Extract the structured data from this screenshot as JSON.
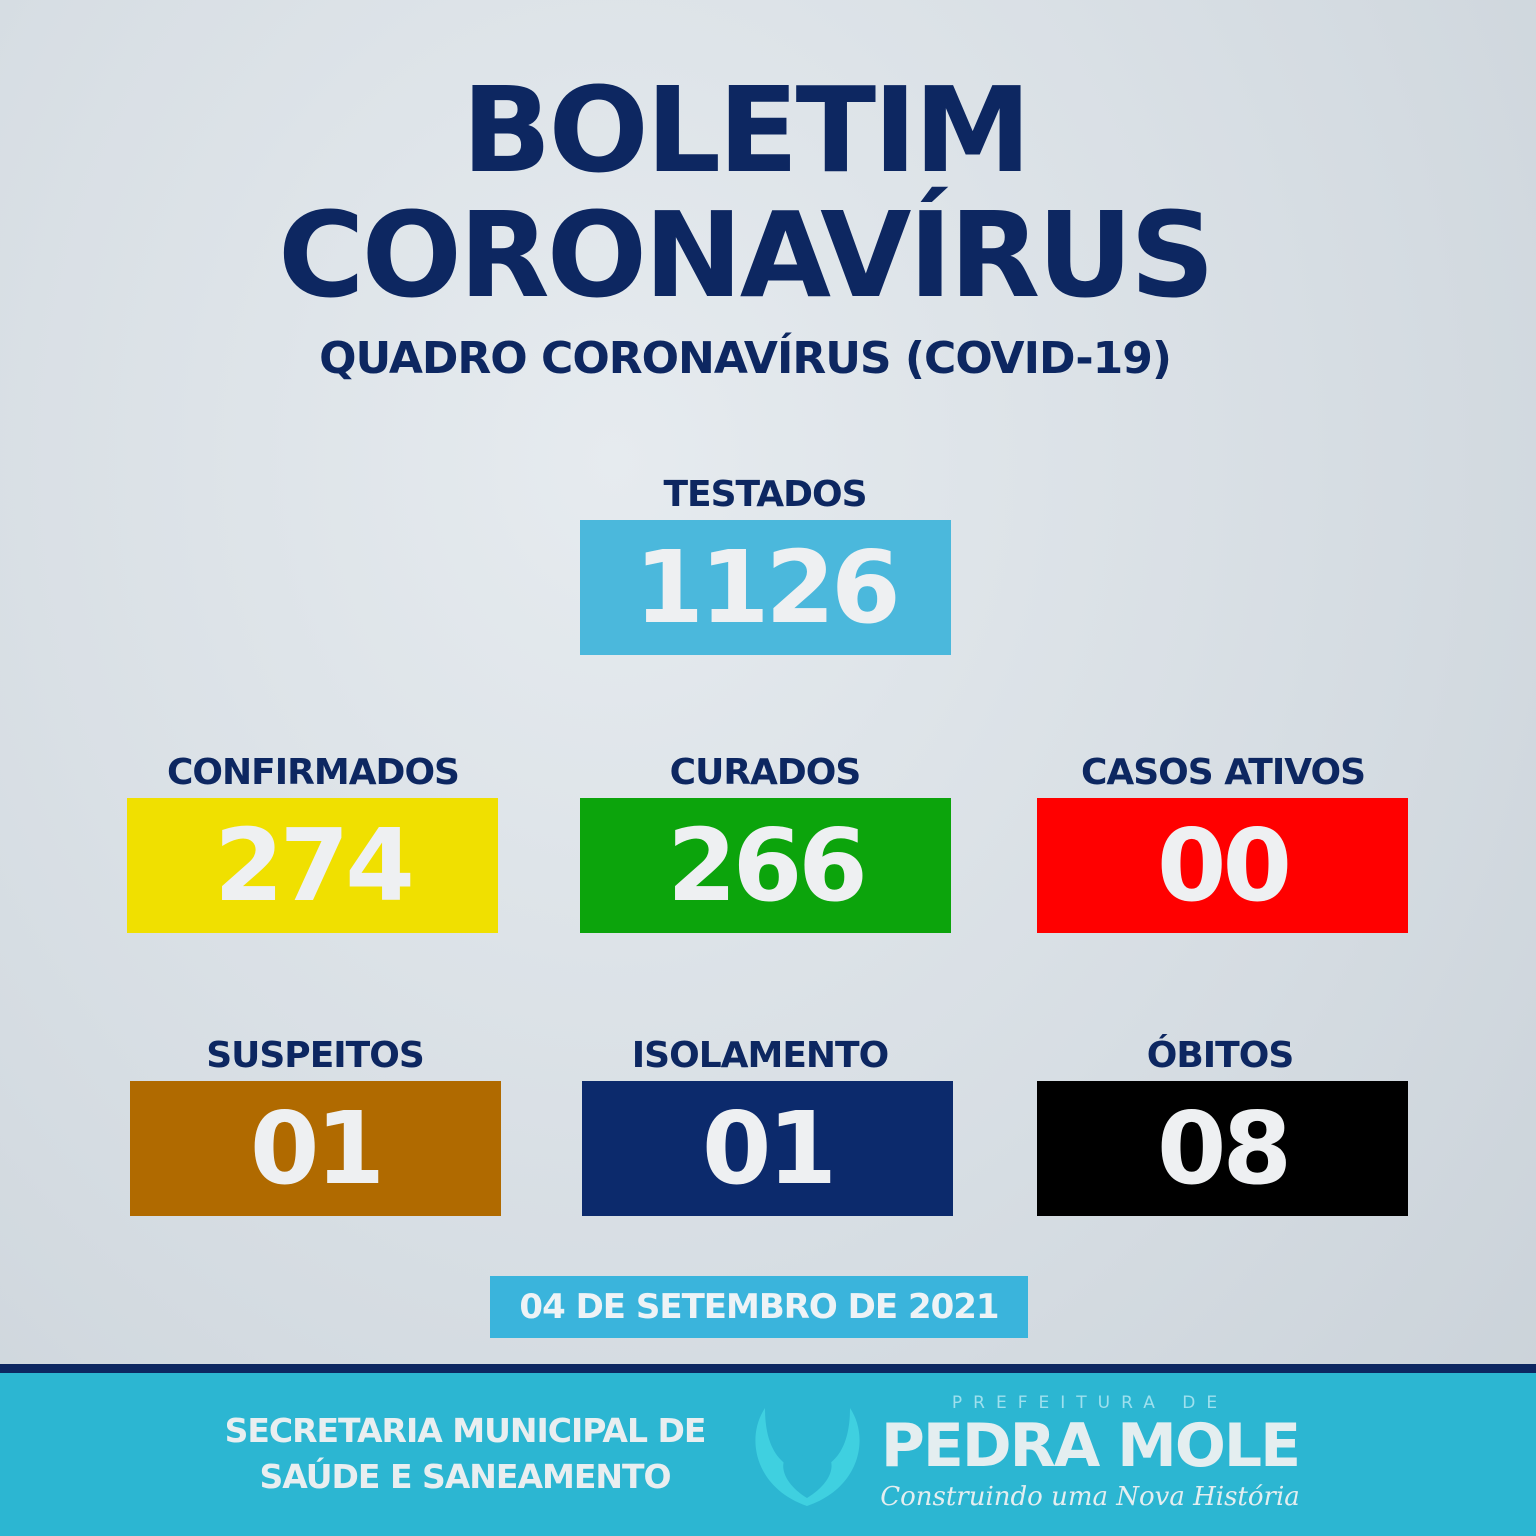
{
  "header": {
    "line1": "BOLETIM",
    "line2": "CORONAVÍRUS",
    "subtitle": "QUADRO CORONAVÍRUS (COVID-19)"
  },
  "stats": [
    {
      "label": "TESTADOS",
      "value": "1126",
      "color": "#4bb8dc"
    },
    {
      "label": "CONFIRMADOS",
      "value": "274",
      "color": "#f0e000"
    },
    {
      "label": "CURADOS",
      "value": "266",
      "color": "#0ca40c"
    },
    {
      "label": "CASOS ATIVOS",
      "value": "00",
      "color": "#ff0000"
    },
    {
      "label": "SUSPEITOS",
      "value": "01",
      "color": "#b06a00"
    },
    {
      "label": "ISOLAMENTO",
      "value": "01",
      "color": "#0c2a6c"
    },
    {
      "label": "ÓBITOS",
      "value": "08",
      "color": "#000000"
    }
  ],
  "date": "04 DE SETEMBRO DE 2021",
  "footer": {
    "secretaria_line1": "SECRETARIA MUNICIPAL DE",
    "secretaria_line2": "SAÚDE E SANEAMENTO",
    "logo_top": "PREFEITURA DE",
    "logo_name": "PEDRA MOLE",
    "logo_slogan": "Construindo uma Nova História"
  }
}
